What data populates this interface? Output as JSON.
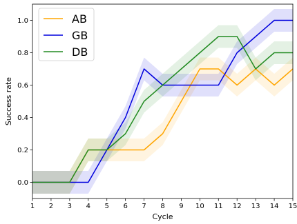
{
  "chart_data": {
    "type": "line",
    "title": "",
    "xlabel": "Cycle",
    "ylabel": "Success rate",
    "xlim": [
      1,
      15
    ],
    "ylim": [
      -0.1,
      1.1
    ],
    "x_ticks": [
      "1",
      "2",
      "3",
      "4",
      "5",
      "6",
      "7",
      "8",
      "9",
      "10",
      "11",
      "12",
      "13",
      "14",
      "15"
    ],
    "y_ticks": [
      "0.0",
      "0.2",
      "0.4",
      "0.6",
      "0.8",
      "1.0"
    ],
    "y_tick_values": [
      0.0,
      0.2,
      0.4,
      0.6,
      0.8,
      1.0
    ],
    "x": [
      1,
      2,
      3,
      4,
      5,
      6,
      7,
      8,
      9,
      10,
      11,
      12,
      13,
      14,
      15
    ],
    "grid": false,
    "legend_position": "top-left",
    "band_halfwidth": 0.07,
    "series": [
      {
        "name": "AB",
        "color": "#ffa500",
        "values": [
          0.0,
          0.0,
          0.0,
          0.2,
          0.2,
          0.2,
          0.2,
          0.3,
          0.5,
          0.7,
          0.7,
          0.6,
          0.7,
          0.6,
          0.7
        ]
      },
      {
        "name": "GB",
        "color": "#0000dd",
        "values": [
          0.0,
          0.0,
          0.0,
          0.0,
          0.2,
          0.4,
          0.7,
          0.6,
          0.6,
          0.6,
          0.6,
          0.8,
          0.9,
          1.0,
          1.0
        ]
      },
      {
        "name": "DB",
        "color": "#228b22",
        "values": [
          0.0,
          0.0,
          0.0,
          0.2,
          0.2,
          0.3,
          0.5,
          0.6,
          0.7,
          0.8,
          0.9,
          0.9,
          0.7,
          0.8,
          0.8
        ]
      }
    ]
  }
}
